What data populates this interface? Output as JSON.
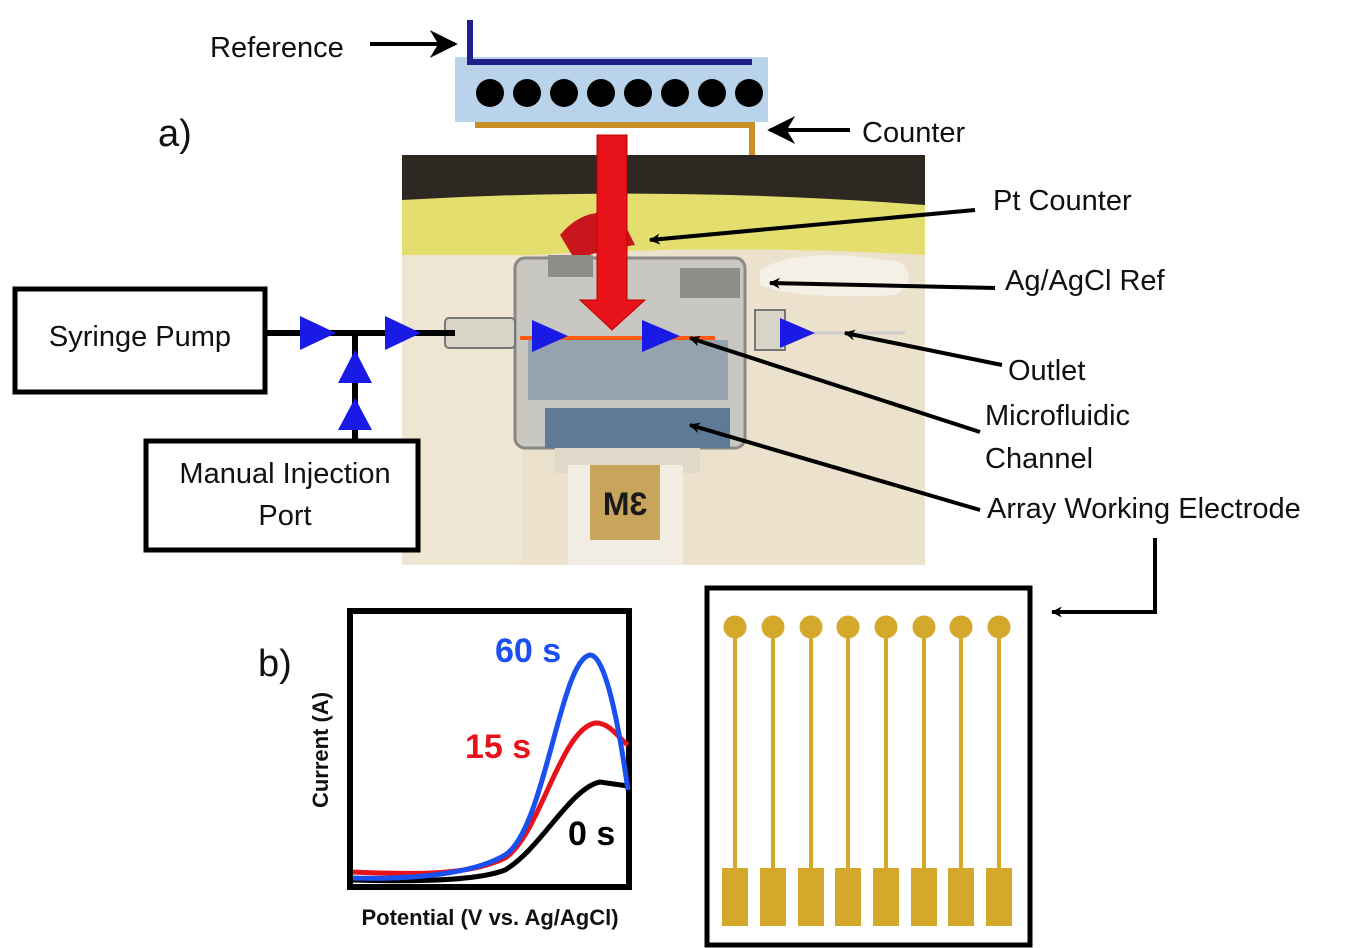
{
  "panel_a": {
    "label": "a)",
    "electrode": {
      "reference": "Reference",
      "counter": "Counter"
    },
    "photo": {
      "logo": "3M"
    },
    "flow": {
      "pump": "Syringe Pump",
      "injection": [
        "Manual Injection",
        "Port"
      ]
    },
    "callouts": {
      "pt_counter": "Pt Counter",
      "ref": "Ag/AgCl Ref",
      "outlet": "Outlet",
      "channel": [
        "Microfluidic",
        "Channel"
      ],
      "array": "Array Working Electrode"
    }
  },
  "panel_b": {
    "label": "b)",
    "y_axis": "Current (A)",
    "x_axis": "Potential (V vs. Ag/AgCl)",
    "curves": [
      {
        "label": "60 s"
      },
      {
        "label": "15 s"
      },
      {
        "label": "0 s"
      }
    ]
  }
}
